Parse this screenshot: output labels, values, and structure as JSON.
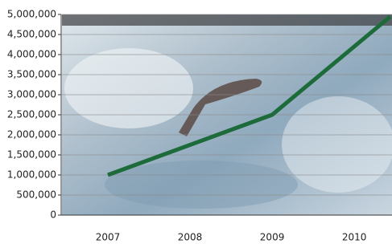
{
  "chart_data": {
    "type": "line",
    "x": [
      2007,
      2009,
      2010.44
    ],
    "series": [
      {
        "color": "#1d6b3a",
        "values": [
          1000000,
          2500000,
          4950000
        ]
      }
    ],
    "xlim": [
      2006.5,
      2010.44
    ],
    "xticks": [
      2007,
      2008,
      2009,
      2010
    ],
    "ylim": [
      0,
      5000000
    ],
    "yticks": [
      {
        "value": 0,
        "label": "0"
      },
      {
        "value": 500000,
        "label": "500,000"
      },
      {
        "value": 1000000,
        "label": "1,000,000"
      },
      {
        "value": 1500000,
        "label": "1,500,000"
      },
      {
        "value": 2000000,
        "label": "2,000,000"
      },
      {
        "value": 2500000,
        "label": "2,500,000"
      },
      {
        "value": 3000000,
        "label": "3,000,000"
      },
      {
        "value": 3500000,
        "label": "3,500,000"
      },
      {
        "value": 4000000,
        "label": "4,000,000"
      },
      {
        "value": 4500000,
        "label": "4,500,000"
      },
      {
        "value": 5000000,
        "label": "5,000,000"
      }
    ],
    "grid": true
  }
}
